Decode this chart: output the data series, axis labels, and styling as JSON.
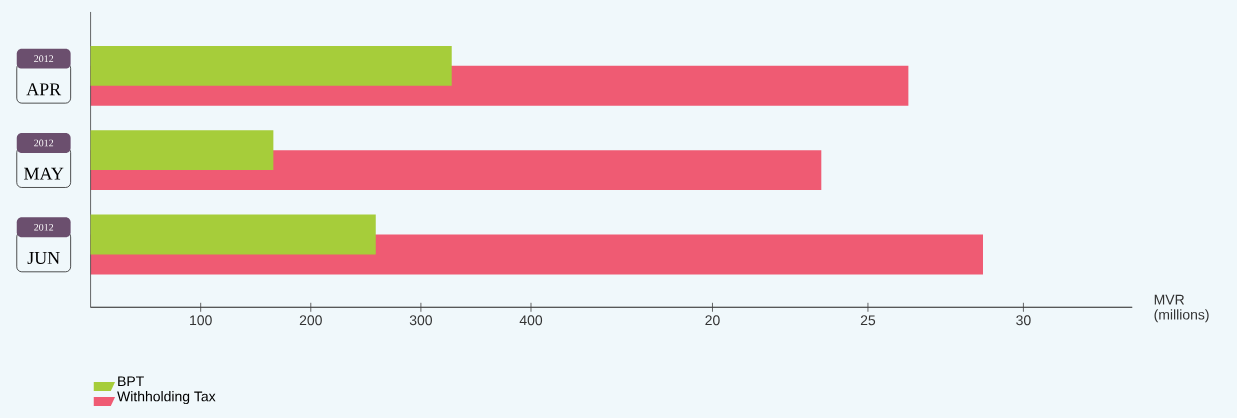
{
  "chart_data": {
    "type": "bar",
    "orientation": "horizontal",
    "xlabel": "MVR (millions)",
    "categories": [
      "APR",
      "MAY",
      "JUN"
    ],
    "series": [
      {
        "name": "BPT",
        "color": "#a6cd3a",
        "values": [
          328,
          166,
          259
        ]
      },
      {
        "name": "Withholding Tax",
        "color": "#ef5b73",
        "values": [
          26.3,
          23.5,
          28.7
        ],
        "axis": "x2"
      }
    ],
    "xlim": [
      0,
      946
    ],
    "xticks": [
      100,
      200,
      300,
      400
    ],
    "x2lim": [
      0,
      33.5
    ],
    "x2ticks": [
      20,
      25,
      30
    ],
    "annotations": [
      "2012",
      "2012",
      "2012"
    ],
    "legend": "bottom left"
  }
}
